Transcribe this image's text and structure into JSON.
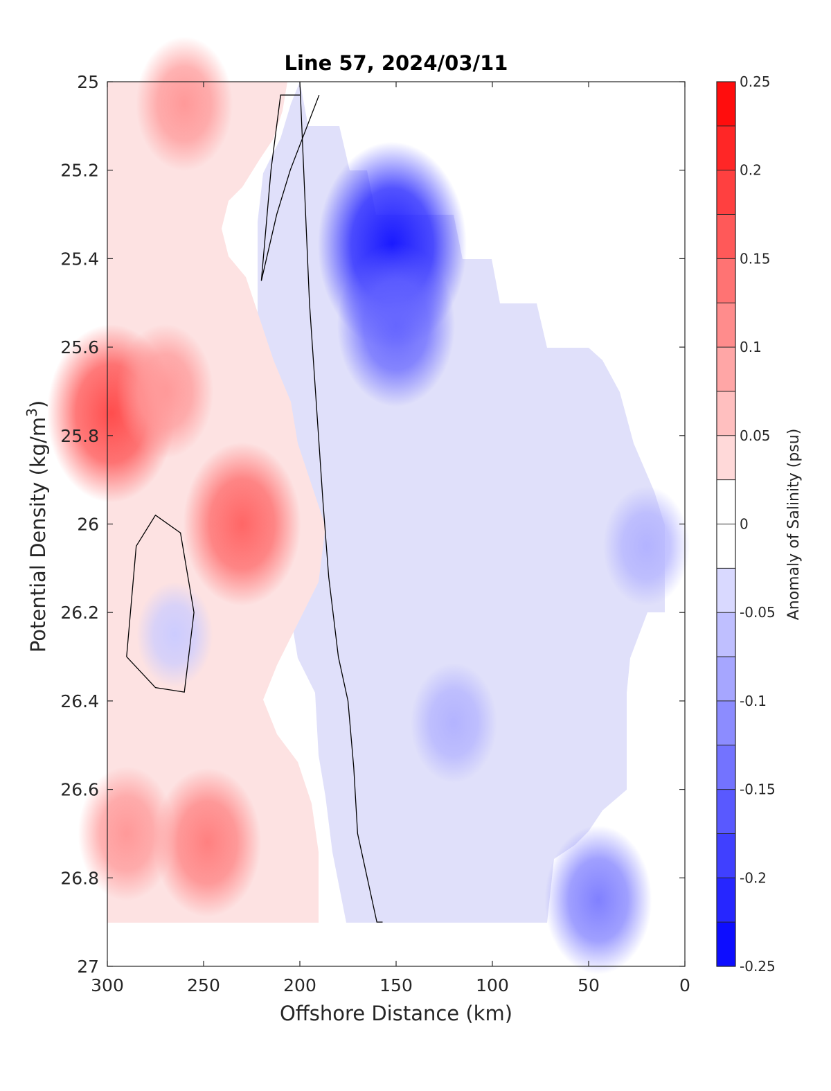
{
  "chart_data": {
    "type": "heatmap",
    "subtype": "filled-contour",
    "title": "Line 57, 2024/03/11",
    "xlabel": "Offshore Distance (km)",
    "ylabel_main": "Potential Density (kg/m",
    "ylabel_sup": "3",
    "ylabel_end": ")",
    "xlim": [
      300,
      0
    ],
    "x_reversed": true,
    "ylim": [
      25,
      27
    ],
    "y_reversed": true,
    "xticks": [
      300,
      250,
      200,
      150,
      100,
      50,
      0
    ],
    "yticks": [
      25,
      25.2,
      25.4,
      25.6,
      25.8,
      26,
      26.2,
      26.4,
      26.6,
      26.8,
      27
    ],
    "ytick_labels": [
      "25",
      "25.2",
      "25.4",
      "25.6",
      "25.8",
      "26",
      "26.2",
      "26.4",
      "26.6",
      "26.8",
      "27"
    ],
    "colorbar": {
      "label": "Anomaly of Salinity (psu)",
      "range": [
        -0.25,
        0.25
      ],
      "step": 0.025,
      "ticks": [
        0.25,
        0.2,
        0.15,
        0.1,
        0.05,
        0,
        -0.05,
        -0.1,
        -0.15,
        -0.2,
        -0.25
      ],
      "tick_labels": [
        "0.25",
        "0.2",
        "0.15",
        "0.1",
        "0.05",
        "0",
        "-0.05",
        "-0.1",
        "-0.15",
        "-0.2",
        "-0.25"
      ],
      "colormap": "blue-white-red"
    },
    "data_extent": {
      "x_max": 300,
      "x_min": 10,
      "y_min": 25,
      "y_max": 26.9
    },
    "features": [
      {
        "name": "positive anomaly core",
        "x": 298,
        "y": 25.75,
        "value": 0.175
      },
      {
        "name": "positive anomaly",
        "x": 270,
        "y": 25.7,
        "value": 0.1
      },
      {
        "name": "positive anomaly",
        "x": 260,
        "y": 25.05,
        "value": 0.1
      },
      {
        "name": "positive anomaly core",
        "x": 230,
        "y": 26.0,
        "value": 0.15
      },
      {
        "name": "positive anomaly",
        "x": 248,
        "y": 26.72,
        "value": 0.125
      },
      {
        "name": "positive anomaly",
        "x": 290,
        "y": 26.7,
        "value": 0.1
      },
      {
        "name": "negative anomaly core",
        "x": 152,
        "y": 25.37,
        "value": -0.225
      },
      {
        "name": "negative anomaly",
        "x": 150,
        "y": 25.55,
        "value": -0.15
      },
      {
        "name": "negative anomaly",
        "x": 45,
        "y": 26.85,
        "value": -0.125
      },
      {
        "name": "negative anomaly",
        "x": 120,
        "y": 26.45,
        "value": -0.075
      },
      {
        "name": "negative anomaly",
        "x": 20,
        "y": 26.05,
        "value": -0.075
      },
      {
        "name": "weak negative",
        "x": 265,
        "y": 26.25,
        "value": -0.05
      }
    ],
    "zero_contours": [
      {
        "name": "main front",
        "x": [
          200,
          195,
          188,
          185,
          180,
          175,
          172,
          170,
          165,
          160,
          157
        ],
        "y": [
          25,
          25.5,
          25.95,
          26.12,
          26.3,
          26.4,
          26.55,
          26.7,
          26.8,
          26.9,
          26.9
        ]
      },
      {
        "name": "upper loop",
        "x": [
          190,
          205,
          212,
          220,
          215,
          210,
          200
        ],
        "y": [
          25.03,
          25.2,
          25.3,
          25.45,
          25.2,
          25.03,
          25.03
        ]
      },
      {
        "name": "lower loop",
        "x": [
          290,
          285,
          275,
          262,
          255,
          260,
          275,
          290
        ],
        "y": [
          26.3,
          26.05,
          25.98,
          26.02,
          26.2,
          26.38,
          26.37,
          26.3
        ]
      }
    ]
  }
}
